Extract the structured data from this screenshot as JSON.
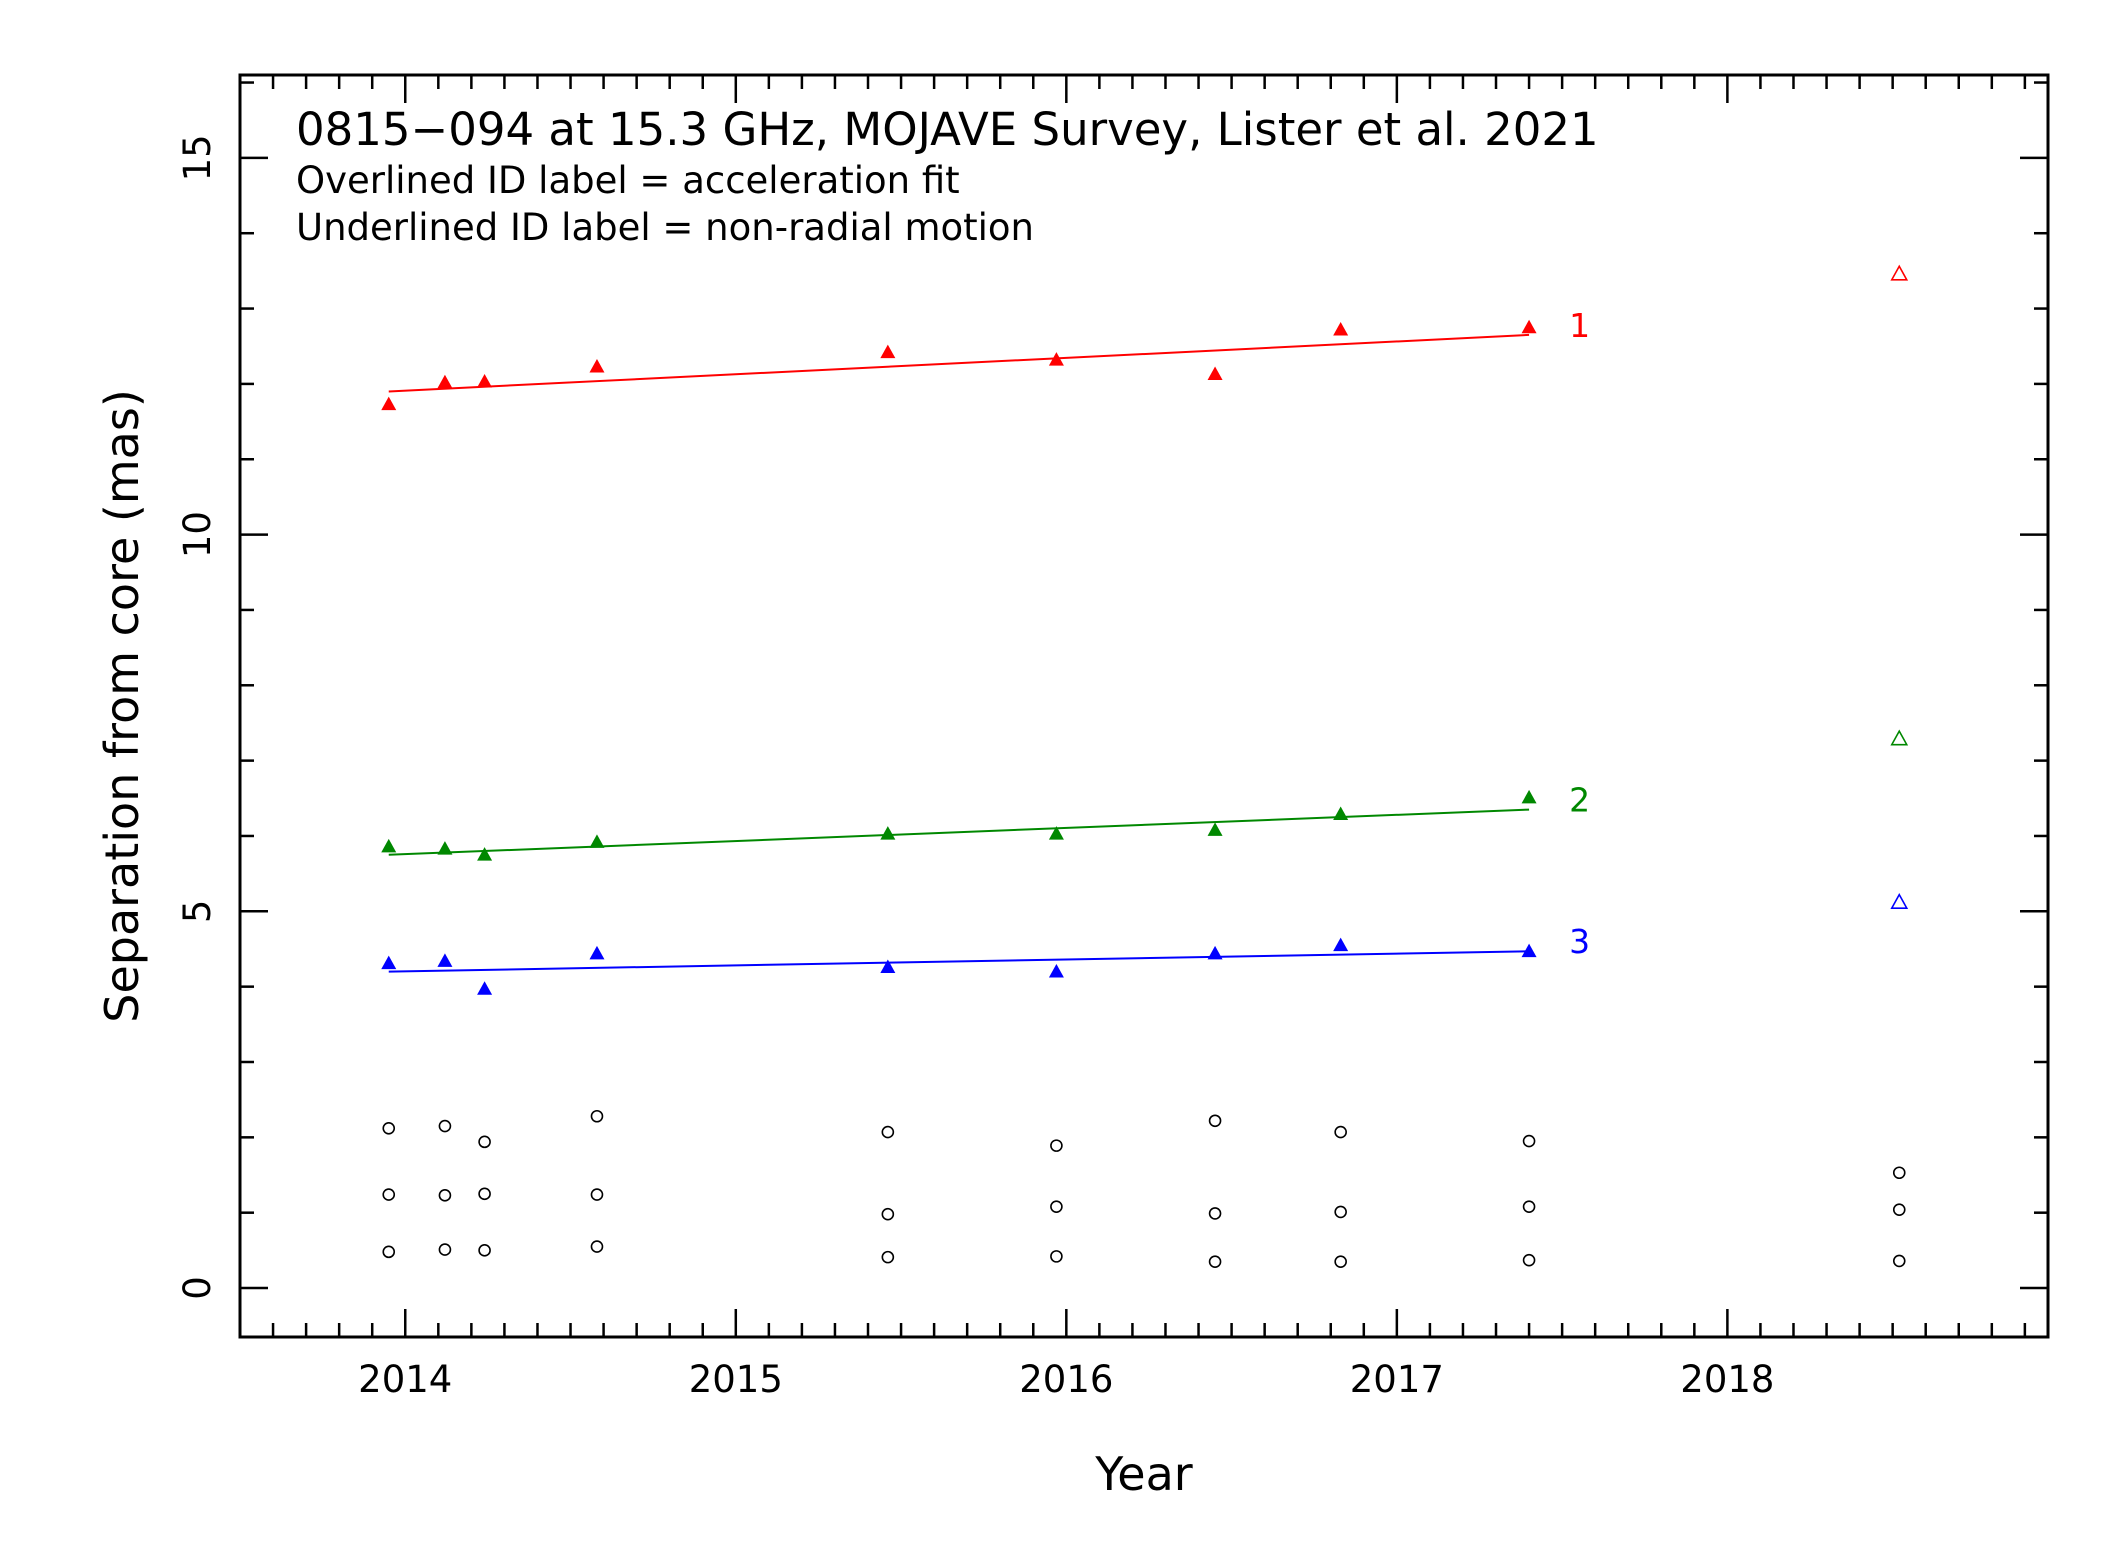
{
  "chart_data": {
    "type": "scatter",
    "title": "0815−094 at 15.3 GHz, MOJAVE Survey, Lister et al. 2021",
    "notes": [
      "Overlined ID label = acceleration fit",
      "Underlined ID label = non-radial motion"
    ],
    "xlabel": "Year",
    "ylabel": "Separation from core (mas)",
    "xlim": [
      2013.5,
      2018.97
    ],
    "ylim": [
      -0.65,
      16.1
    ],
    "xticks": [
      "2014",
      "2015",
      "2016",
      "2017",
      "2018"
    ],
    "yticks": [
      "0",
      "5",
      "10",
      "15"
    ],
    "grid": false,
    "series": [
      {
        "name": "1",
        "color": "#ff0000",
        "marker": "filled-triangle",
        "x": [
          2013.95,
          2014.12,
          2014.24,
          2014.58,
          2015.46,
          2015.97,
          2016.45,
          2016.83,
          2017.4
        ],
        "y": [
          11.72,
          12.01,
          12.02,
          12.22,
          12.41,
          12.31,
          12.12,
          12.71,
          12.74
        ],
        "fit": {
          "x": [
            2013.95,
            2017.4
          ],
          "y": [
            11.9,
            12.65
          ]
        }
      },
      {
        "name": "2",
        "color": "#008800",
        "marker": "filled-triangle",
        "x": [
          2013.95,
          2014.12,
          2014.24,
          2014.58,
          2015.46,
          2015.97,
          2016.45,
          2016.83,
          2017.4
        ],
        "y": [
          5.85,
          5.82,
          5.74,
          5.91,
          6.02,
          6.02,
          6.07,
          6.28,
          6.5
        ],
        "fit": {
          "x": [
            2013.95,
            2017.4
          ],
          "y": [
            5.75,
            6.35
          ]
        }
      },
      {
        "name": "3",
        "color": "#0000ff",
        "marker": "filled-triangle",
        "x": [
          2013.95,
          2014.12,
          2014.24,
          2014.58,
          2015.46,
          2015.97,
          2016.45,
          2016.83,
          2017.4
        ],
        "y": [
          4.3,
          4.33,
          3.96,
          4.43,
          4.25,
          4.19,
          4.43,
          4.54,
          4.46
        ],
        "fit": {
          "x": [
            2013.95,
            2017.4
          ],
          "y": [
            4.2,
            4.47
          ]
        }
      }
    ],
    "unfitted": [
      {
        "color": "#ff0000",
        "marker": "open-triangle",
        "x": 2018.52,
        "y": 13.45
      },
      {
        "color": "#008800",
        "marker": "open-triangle",
        "x": 2018.52,
        "y": 7.28
      },
      {
        "color": "#0000ff",
        "marker": "open-triangle",
        "x": 2018.52,
        "y": 5.11
      }
    ],
    "other_components": {
      "color": "#000000",
      "marker": "open-circle",
      "x": [
        2013.95,
        2013.95,
        2013.95,
        2014.12,
        2014.12,
        2014.12,
        2014.24,
        2014.24,
        2014.24,
        2014.58,
        2014.58,
        2014.58,
        2015.46,
        2015.46,
        2015.46,
        2015.97,
        2015.97,
        2015.97,
        2016.45,
        2016.45,
        2016.45,
        2016.83,
        2016.83,
        2016.83,
        2017.4,
        2017.4,
        2017.4,
        2018.52,
        2018.52,
        2018.52
      ],
      "y": [
        2.12,
        1.24,
        0.48,
        2.15,
        1.23,
        0.51,
        1.94,
        1.25,
        0.5,
        2.28,
        1.24,
        0.55,
        2.07,
        0.98,
        0.41,
        1.89,
        1.08,
        0.42,
        2.22,
        0.99,
        0.35,
        2.07,
        1.01,
        0.35,
        1.95,
        1.08,
        0.37,
        1.53,
        1.04,
        0.36
      ]
    }
  }
}
